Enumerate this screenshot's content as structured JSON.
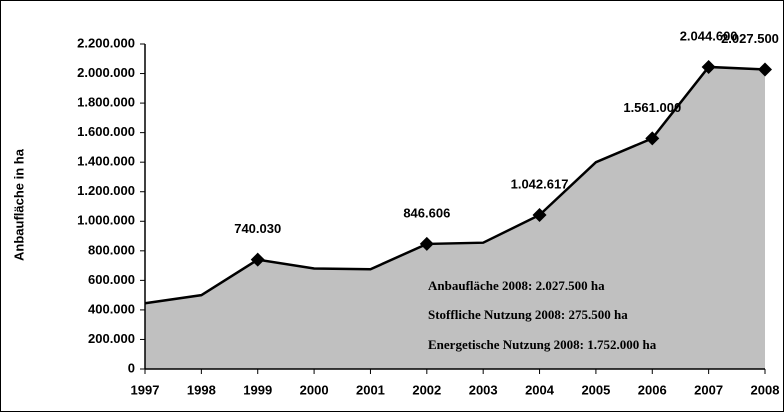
{
  "chart_data": {
    "type": "area",
    "y_label": "Anbaufläche in ha",
    "categories": [
      "1997",
      "1998",
      "1999",
      "2000",
      "2001",
      "2002",
      "2003",
      "2004",
      "2005",
      "2006",
      "2007",
      "2008"
    ],
    "values": [
      445000,
      500000,
      740030,
      680000,
      675000,
      846606,
      855000,
      1042617,
      1400000,
      1561000,
      2044600,
      2027500
    ],
    "value_labels": [
      null,
      null,
      "740.030",
      null,
      null,
      "846.606",
      null,
      "1.042.617",
      null,
      "1.561.000",
      "2.044.600",
      "2.027.500"
    ],
    "color": "#c0c0c0",
    "ylim": [
      0,
      2200000
    ],
    "yticks": [
      0,
      {
        "value": 200000,
        "label": "200.000"
      },
      {
        "value": 400000,
        "label": "400.000"
      },
      {
        "value": 600000,
        "label": "600.000"
      },
      {
        "value": 800000,
        "label": "800.000"
      },
      {
        "value": 1000000,
        "label": "1.000.000"
      },
      {
        "value": 1200000,
        "label": "1.200.000"
      },
      {
        "value": 1400000,
        "label": "1.400.000"
      },
      {
        "value": 1600000,
        "label": "1.600.000"
      },
      {
        "value": 1800000,
        "label": "1.800.000"
      },
      {
        "value": 2000000,
        "label": "2.000.000"
      },
      {
        "value": 2200000,
        "label": "2.200.000"
      }
    ],
    "annotations": [
      "Anbaufläche 2008: 2.027.500 ha",
      "Stoffliche Nutzung 2008: 275.500 ha",
      "Energetische Nutzung 2008: 1.752.000 ha"
    ]
  }
}
